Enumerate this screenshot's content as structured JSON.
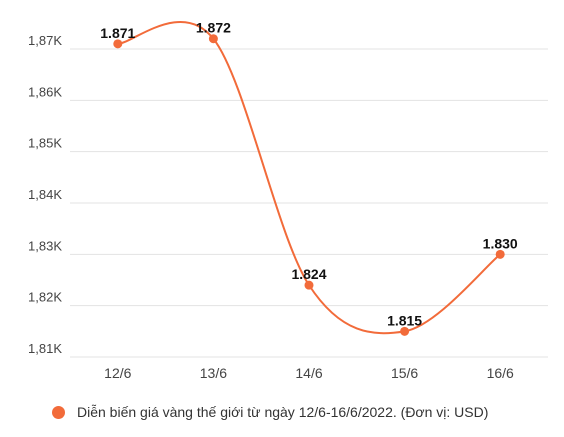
{
  "chart_data": {
    "type": "line",
    "categories": [
      "12/6",
      "13/6",
      "14/6",
      "15/6",
      "16/6"
    ],
    "series": [
      {
        "name": "Diễn biến giá vàng thế giới từ ngày 12/6-16/6/2022. (Đơn vị: USD)",
        "values": [
          1871,
          1872,
          1824,
          1815,
          1830
        ],
        "color": "#f26b3a"
      }
    ],
    "data_labels": [
      "1.871",
      "1.872",
      "1.824",
      "1.815",
      "1.830"
    ],
    "yticks": [
      1810,
      1820,
      1830,
      1840,
      1850,
      1860,
      1870
    ],
    "ytick_labels": [
      "1,81K",
      "1,82K",
      "1,83K",
      "1,84K",
      "1,85K",
      "1,86K",
      "1,87K"
    ],
    "ylim": [
      1810,
      1872.5
    ],
    "grid": true,
    "legend_position": "bottom-left",
    "title": "",
    "xlabel": "",
    "ylabel": ""
  }
}
